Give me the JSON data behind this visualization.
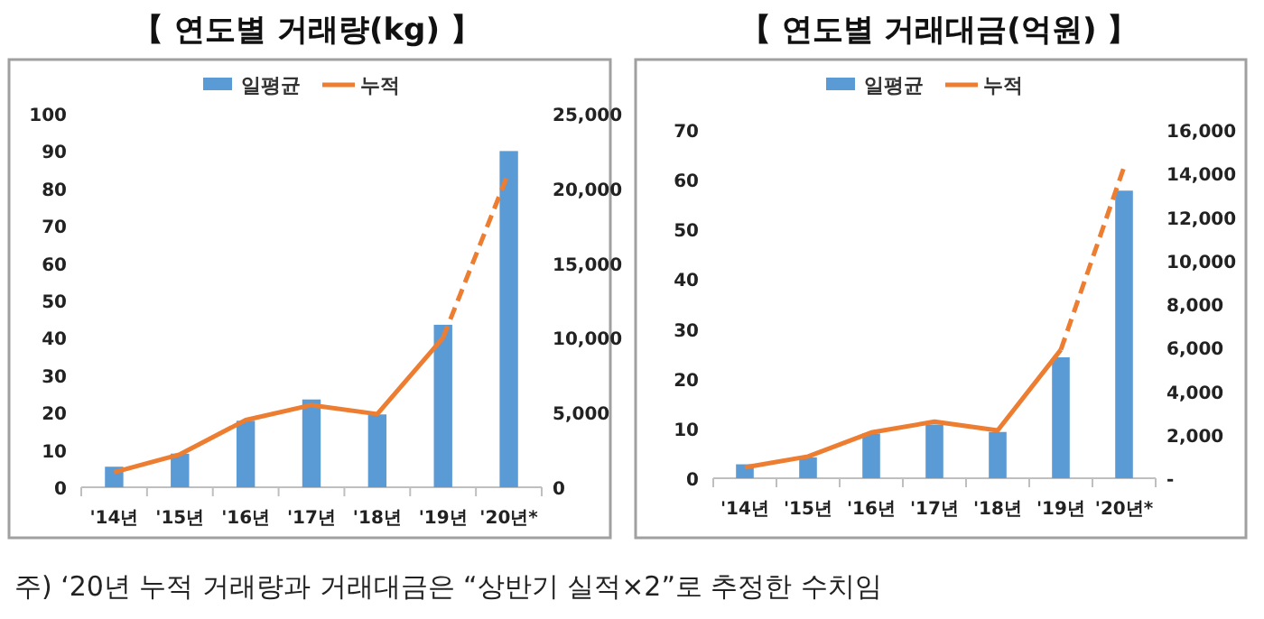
{
  "chart_data": [
    {
      "type": "bar",
      "title": "【 연도별 거래량(kg) 】",
      "categories": [
        "'14년",
        "'15년",
        "'16년",
        "'17년",
        "'18년",
        "'19년",
        "'20년*"
      ],
      "series": [
        {
          "name": "일평균",
          "color": "#5b9bd5",
          "values": [
            5.5,
            9,
            17.8,
            23.5,
            19.5,
            43.5,
            90
          ]
        },
        {
          "name": "누적",
          "type": "line",
          "axis": "y2",
          "color": "#ed7d31",
          "line_style": "solid",
          "values": [
            1000,
            2200,
            4500,
            5500,
            4900,
            10000,
            null
          ]
        },
        {
          "type": "line",
          "axis": "y2",
          "color": "#ed7d31",
          "line_style": "dashed",
          "values": [
            null,
            null,
            null,
            null,
            null,
            10000,
            21100
          ]
        }
      ],
      "ylim": [
        0,
        100
      ],
      "yticks": [
        0,
        10,
        20,
        30,
        40,
        50,
        60,
        70,
        80,
        90,
        100
      ],
      "y2lim": [
        0,
        25000
      ],
      "y2ticks": [
        {
          "value": 0,
          "label": "0"
        },
        {
          "value": 5000,
          "label": "5,000"
        },
        {
          "value": 10000,
          "label": "10,000"
        },
        {
          "value": 15000,
          "label": "15,000"
        },
        {
          "value": 20000,
          "label": "20,000"
        },
        {
          "value": 25000,
          "label": "25,000"
        }
      ],
      "legend": "top",
      "grid": false,
      "annotations": [
        "주) ‘20년 누적 거래량과 거래대금은 “상반기 실적×2”로 추정한 수치임"
      ]
    },
    {
      "type": "bar",
      "title": "【 연도별 거래대금(억원) 】",
      "categories": [
        "'14년",
        "'15년",
        "'16년",
        "'17년",
        "'18년",
        "'19년",
        "'20년*"
      ],
      "series": [
        {
          "name": "일평균",
          "color": "#5b9bd5",
          "values": [
            2.8,
            4.2,
            9,
            10.8,
            9.3,
            24.3,
            57.8
          ]
        },
        {
          "name": "누적",
          "type": "line",
          "axis": "y2",
          "color": "#ed7d31",
          "line_style": "solid",
          "values": [
            500,
            1000,
            2100,
            2600,
            2200,
            5900,
            null
          ]
        },
        {
          "type": "line",
          "axis": "y2",
          "color": "#ed7d31",
          "line_style": "dashed",
          "values": [
            null,
            null,
            null,
            null,
            null,
            5900,
            14300
          ]
        }
      ],
      "ylim": [
        0,
        70
      ],
      "yticks": [
        0,
        10,
        20,
        30,
        40,
        50,
        60,
        70
      ],
      "y2lim": [
        0,
        16000
      ],
      "y2ticks": [
        {
          "value": 0,
          "label": "-"
        },
        {
          "value": 2000,
          "label": "2,000"
        },
        {
          "value": 4000,
          "label": "4,000"
        },
        {
          "value": 6000,
          "label": "6,000"
        },
        {
          "value": 8000,
          "label": "8,000"
        },
        {
          "value": 10000,
          "label": "10,000"
        },
        {
          "value": 12000,
          "label": "12,000"
        },
        {
          "value": 14000,
          "label": "14,000"
        },
        {
          "value": 16000,
          "label": "16,000"
        }
      ],
      "legend": "top",
      "grid": false
    }
  ]
}
